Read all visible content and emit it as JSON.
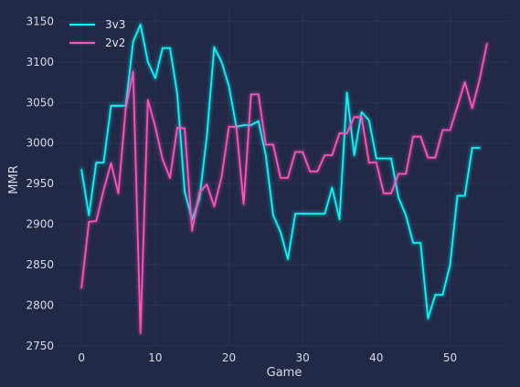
{
  "chart_data": {
    "type": "line",
    "xlabel": "Game",
    "ylabel": "MMR",
    "xlim": [
      -3,
      58
    ],
    "ylim": [
      2750,
      3165
    ],
    "x_ticks": [
      0,
      10,
      20,
      30,
      40,
      50
    ],
    "y_ticks": [
      2750,
      2800,
      2850,
      2900,
      2950,
      3000,
      3050,
      3100,
      3150
    ],
    "grid": true,
    "legend_position": "top-left",
    "series": [
      {
        "name": "3v3",
        "color": "#08F7FE",
        "x": [
          0,
          1,
          2,
          3,
          4,
          5,
          6,
          7,
          8,
          9,
          10,
          11,
          12,
          13,
          14,
          15,
          16,
          17,
          18,
          19,
          20,
          21,
          22,
          23,
          24,
          25,
          26,
          27,
          28,
          29,
          30,
          31,
          32,
          33,
          34,
          35,
          36,
          37,
          38,
          39,
          40,
          41,
          42,
          43,
          44,
          45,
          46,
          47,
          48,
          49,
          50,
          51,
          52,
          53,
          54
        ],
        "values": [
          2967,
          2911,
          2976,
          2976,
          3046,
          3046,
          3046,
          3125,
          3146,
          3100,
          3080,
          3117,
          3117,
          3060,
          2940,
          2906,
          2931,
          3008,
          3118,
          3100,
          3070,
          3020,
          3022,
          3022,
          3027,
          2985,
          2911,
          2890,
          2857,
          2913,
          2913,
          2913,
          2913,
          2913,
          2945,
          2906,
          3062,
          2985,
          3038,
          3028,
          2981,
          2981,
          2981,
          2933,
          2911,
          2877,
          2877,
          2784,
          2813,
          2813,
          2850,
          2935,
          2935,
          2994,
          2994
        ]
      },
      {
        "name": "2v2",
        "color": "#FE53BB",
        "x": [
          0,
          1,
          2,
          3,
          4,
          5,
          6,
          7,
          8,
          9,
          10,
          11,
          12,
          13,
          14,
          15,
          16,
          17,
          18,
          19,
          20,
          21,
          22,
          23,
          24,
          25,
          26,
          27,
          28,
          29,
          30,
          31,
          32,
          33,
          34,
          35,
          36,
          37,
          38,
          39,
          40,
          41,
          42,
          43,
          44,
          45,
          46,
          47,
          48,
          49,
          50,
          51,
          52,
          53,
          54,
          55
        ],
        "values": [
          2822,
          2903,
          2904,
          2942,
          2975,
          2938,
          3043,
          3088,
          2766,
          3053,
          3020,
          2980,
          2957,
          3019,
          3018,
          2892,
          2939,
          2949,
          2922,
          2958,
          3020,
          3020,
          2925,
          3060,
          3060,
          2998,
          2998,
          2957,
          2957,
          2989,
          2989,
          2965,
          2965,
          2985,
          2985,
          3012,
          3012,
          3032,
          3032,
          2976,
          2976,
          2938,
          2938,
          2962,
          2962,
          3008,
          3008,
          2982,
          2982,
          3016,
          3016,
          3045,
          3075,
          3043,
          3078,
          3122
        ]
      }
    ]
  }
}
